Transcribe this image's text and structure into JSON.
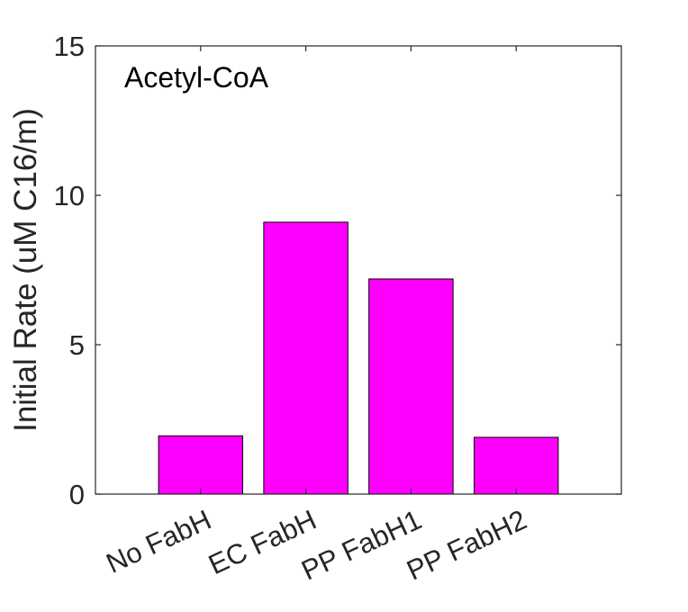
{
  "chart_data": {
    "type": "bar",
    "categories": [
      "No FabH",
      "EC FabH",
      "PP FabH1",
      "PP FabH2"
    ],
    "values": [
      1.95,
      9.1,
      7.2,
      1.9
    ],
    "title": "",
    "annotation": "Acetyl-CoA",
    "xlabel": "",
    "ylabel": "Initial Rate (uM C16/m)",
    "ylim": [
      0,
      15
    ],
    "yticks": [
      0,
      5,
      10,
      15
    ],
    "grid": false,
    "bar_color": "#FF00FF"
  }
}
